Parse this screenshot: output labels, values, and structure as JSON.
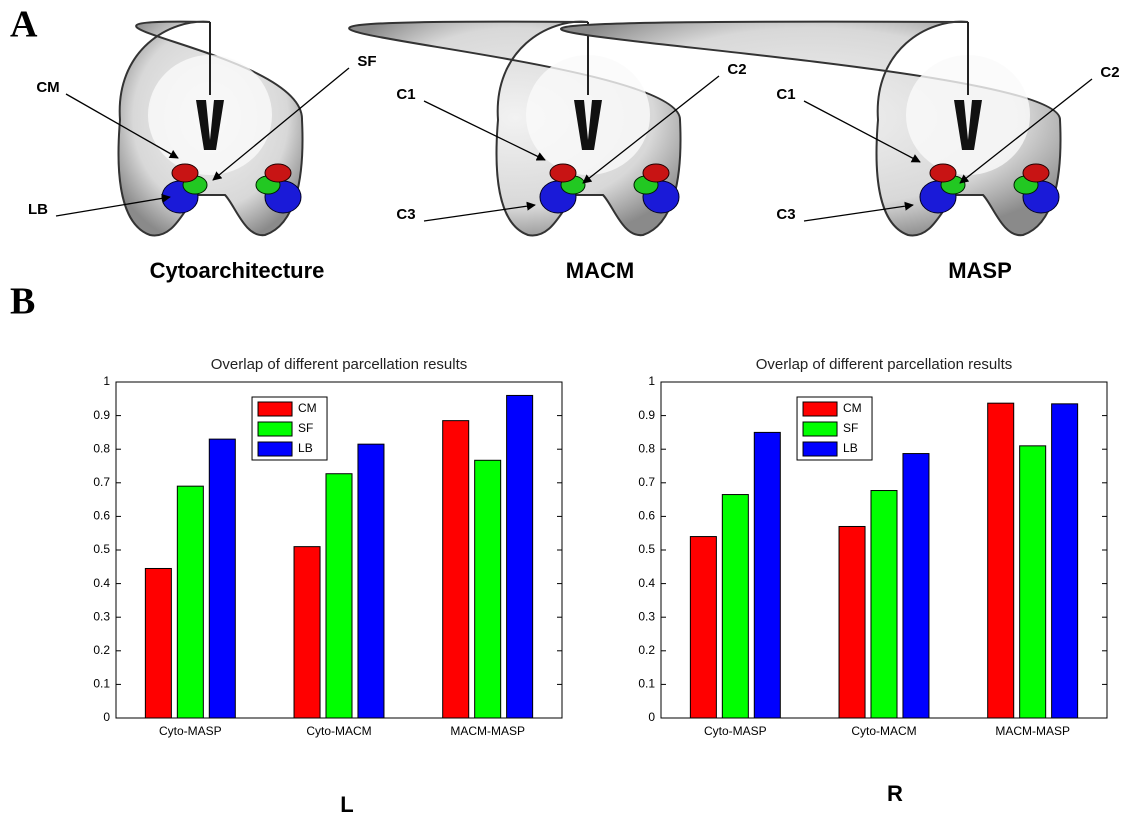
{
  "panel_labels": [
    "A",
    "B"
  ],
  "brains": [
    {
      "caption": "Cytoarchitecture",
      "labels": [
        "CM",
        "SF",
        "LB"
      ]
    },
    {
      "caption": "MACM",
      "labels": [
        "C1",
        "C2",
        "C3"
      ]
    },
    {
      "caption": "MASP",
      "labels": [
        "C1",
        "C2",
        "C3"
      ]
    }
  ],
  "side_labels": [
    "L",
    "R"
  ],
  "chart_data": [
    {
      "type": "bar",
      "title": "Overlap of different parcellation results",
      "categories": [
        "Cyto-MASP",
        "Cyto-MACM",
        "MACM-MASP"
      ],
      "series": [
        {
          "name": "CM",
          "color": "#ff0000",
          "values": [
            0.445,
            0.51,
            0.885
          ]
        },
        {
          "name": "SF",
          "color": "#00ff00",
          "values": [
            0.69,
            0.727,
            0.767
          ]
        },
        {
          "name": "LB",
          "color": "#0000ff",
          "values": [
            0.83,
            0.815,
            0.96
          ]
        }
      ],
      "ylim": [
        0,
        1
      ],
      "yticks": [
        0,
        0.1,
        0.2,
        0.3,
        0.4,
        0.5,
        0.6,
        0.7,
        0.8,
        0.9,
        1
      ],
      "legend": "north"
    },
    {
      "type": "bar",
      "title": "Overlap of different parcellation results",
      "categories": [
        "Cyto-MASP",
        "Cyto-MACM",
        "MACM-MASP"
      ],
      "series": [
        {
          "name": "CM",
          "color": "#ff0000",
          "values": [
            0.54,
            0.57,
            0.937
          ]
        },
        {
          "name": "SF",
          "color": "#00ff00",
          "values": [
            0.665,
            0.677,
            0.81
          ]
        },
        {
          "name": "LB",
          "color": "#0000ff",
          "values": [
            0.85,
            0.787,
            0.935
          ]
        }
      ],
      "ylim": [
        0,
        1
      ],
      "yticks": [
        0,
        0.1,
        0.2,
        0.3,
        0.4,
        0.5,
        0.6,
        0.7,
        0.8,
        0.9,
        1
      ],
      "legend": "north"
    }
  ]
}
